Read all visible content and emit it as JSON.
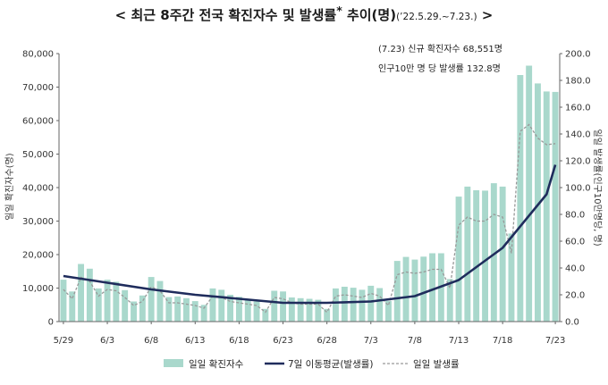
{
  "title": {
    "prefix": "<",
    "main": "최근 8주간 전국 확진자수 및 발생률",
    "star": "*",
    "suffix": " 추이(명)",
    "range": "(’22.5.29.~7.23.)",
    "end": ">"
  },
  "annotation": {
    "line1": "(7.23) 신규 확진자수 68,551명",
    "line2": "인구10만 명 당 발생률 132.8명"
  },
  "colors": {
    "bar": "#a9d8cc",
    "avg_line": "#1f2c5c",
    "daily_rate_line": "#999999",
    "axis": "#666666"
  },
  "chart_data": {
    "type": "bar",
    "x_ticks": [
      "5/29",
      "6/3",
      "6/8",
      "6/13",
      "6/18",
      "6/23",
      "6/28",
      "7/3",
      "7/8",
      "7/13",
      "7/18",
      "7/23"
    ],
    "ylabel_left": "일일 확진자수(명)",
    "ylabel_right": "일일 발생률(인구10만명당, 명)",
    "y_left_ticks": [
      "0",
      "10,000",
      "20,000",
      "30,000",
      "40,000",
      "50,000",
      "60,000",
      "70,000",
      "80,000"
    ],
    "y_right_ticks": [
      "0.0",
      "20.0",
      "40.0",
      "60.0",
      "80.0",
      "100.0",
      "120.0",
      "140.0",
      "160.0",
      "180.0",
      "200.0"
    ],
    "ylim_left": [
      0,
      80000
    ],
    "ylim_right": [
      0,
      200
    ],
    "grid": false,
    "legend_position": "bottom",
    "series": [
      {
        "name": "일일 확진자수",
        "kind": "bar",
        "axis": "left",
        "values": [
          12500,
          9000,
          17200,
          15800,
          9900,
          12500,
          11900,
          9400,
          6000,
          7800,
          13300,
          12100,
          7300,
          7500,
          7000,
          6100,
          5000,
          9900,
          9500,
          8000,
          7400,
          6500,
          6000,
          3800,
          9200,
          9000,
          7200,
          7000,
          6800,
          6500,
          3800,
          9900,
          10400,
          10100,
          9500,
          10700,
          10000,
          6200,
          18100,
          19300,
          18500,
          19400,
          20400,
          20400,
          12700,
          37300,
          40300,
          39200,
          39100,
          41300,
          40300,
          26300,
          73600,
          76400,
          71100,
          68700,
          68551
        ]
      },
      {
        "name": "7일 이동평균(발생률)",
        "kind": "line",
        "axis": "right",
        "x": [
          0,
          5,
          10,
          15,
          20,
          25,
          30,
          35,
          40,
          45,
          50,
          55,
          56
        ],
        "values": [
          34,
          29,
          24,
          20,
          17,
          14,
          14,
          15,
          19,
          31,
          55,
          95,
          117
        ]
      },
      {
        "name": "일일 발생률",
        "kind": "dashed-line",
        "axis": "right",
        "values": [
          24,
          17,
          33,
          30,
          19,
          24,
          23,
          18,
          12,
          15,
          26,
          23,
          14,
          14,
          13,
          12,
          10,
          19,
          18,
          15,
          14,
          13,
          12,
          7,
          18,
          17,
          14,
          13,
          13,
          13,
          7,
          19,
          20,
          19,
          18,
          21,
          19,
          12,
          35,
          37,
          36,
          37,
          39,
          39,
          25,
          72,
          78,
          75,
          75,
          80,
          78,
          51,
          142,
          147,
          137,
          132,
          132.8
        ]
      }
    ]
  }
}
